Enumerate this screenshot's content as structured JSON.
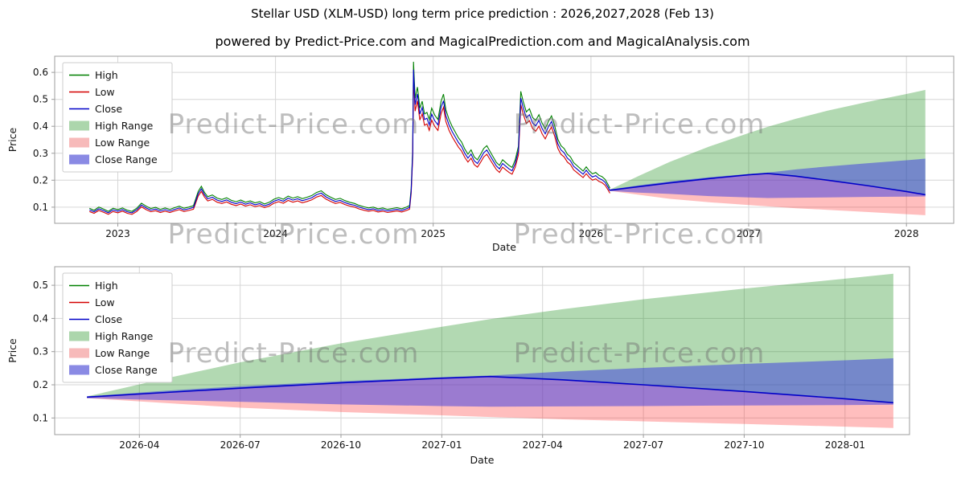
{
  "page": {
    "title": "Stellar USD (XLM-USD) long term price prediction : 2026,2027,2028 (Feb 13)",
    "subtitle": "powered by Predict-Price.com and MagicalPrediction.com and MagicalAnalysis.com",
    "watermark": "Predict-Price.com"
  },
  "colors": {
    "high": "#008000",
    "low": "#d40000",
    "close": "#0000c8",
    "high_fill": "rgba(0,128,0,0.30)",
    "low_fill": "rgba(255,40,40,0.30)",
    "close_fill": "rgba(55,55,225,0.50)",
    "high_range_swatch": "#acd6ac",
    "low_range_swatch": "#f7baba",
    "close_range_swatch": "#8a8ae4",
    "grid": "#d6d6d6",
    "border": "#9c9c9c",
    "text": "#111111",
    "watermark_color": "rgba(110,110,110,0.45)"
  },
  "legend": {
    "items": [
      {
        "label": "High",
        "type": "line",
        "color_key": "high"
      },
      {
        "label": "Low",
        "type": "line",
        "color_key": "low"
      },
      {
        "label": "Close",
        "type": "line",
        "color_key": "close"
      },
      {
        "label": "High Range",
        "type": "patch",
        "color_key": "high_range_swatch"
      },
      {
        "label": "Low Range",
        "type": "patch",
        "color_key": "low_range_swatch"
      },
      {
        "label": "Close Range",
        "type": "patch",
        "color_key": "close_range_swatch"
      }
    ]
  },
  "chart_data": [
    {
      "id": "main",
      "type": "line",
      "title": "Stellar USD (XLM-USD) long term price prediction : 2026,2027,2028 (Feb 13)",
      "xlabel": "Date",
      "ylabel": "Price",
      "xlim": [
        2022.6,
        2028.3
      ],
      "ylim": [
        0.04,
        0.66
      ],
      "grid": true,
      "legend_position": "upper-left",
      "xticks": {
        "values": [
          2023,
          2024,
          2025,
          2026,
          2027,
          2028
        ],
        "labels": [
          "2023",
          "2024",
          "2025",
          "2026",
          "2027",
          "2028"
        ]
      },
      "yticks": {
        "values": [
          0.1,
          0.2,
          0.3,
          0.4,
          0.5,
          0.6
        ],
        "labels": [
          "0.1",
          "0.2",
          "0.3",
          "0.4",
          "0.5",
          "0.6"
        ]
      },
      "history": {
        "high_low_band_pct": 4.5,
        "x": [
          2022.82,
          2022.85,
          2022.88,
          2022.91,
          2022.94,
          2022.97,
          2023.0,
          2023.03,
          2023.06,
          2023.09,
          2023.12,
          2023.15,
          2023.18,
          2023.21,
          2023.24,
          2023.27,
          2023.3,
          2023.33,
          2023.36,
          2023.39,
          2023.42,
          2023.45,
          2023.48,
          2023.51,
          2023.53,
          2023.55,
          2023.57,
          2023.6,
          2023.63,
          2023.66,
          2023.69,
          2023.72,
          2023.75,
          2023.78,
          2023.81,
          2023.84,
          2023.87,
          2023.9,
          2023.93,
          2023.96,
          2023.99,
          2024.02,
          2024.05,
          2024.08,
          2024.11,
          2024.14,
          2024.17,
          2024.2,
          2024.23,
          2024.26,
          2024.29,
          2024.32,
          2024.35,
          2024.38,
          2024.41,
          2024.44,
          2024.47,
          2024.5,
          2024.53,
          2024.56,
          2024.59,
          2024.62,
          2024.65,
          2024.68,
          2024.71,
          2024.74,
          2024.77,
          2024.8,
          2024.83,
          2024.85,
          2024.86,
          2024.87,
          2024.875,
          2024.885,
          2024.9,
          2024.915,
          2024.93,
          2024.945,
          2024.96,
          2024.975,
          2024.99,
          2025.01,
          2025.03,
          2025.05,
          2025.065,
          2025.08,
          2025.1,
          2025.12,
          2025.14,
          2025.16,
          2025.18,
          2025.2,
          2025.22,
          2025.24,
          2025.26,
          2025.28,
          2025.3,
          2025.32,
          2025.34,
          2025.36,
          2025.38,
          2025.4,
          2025.42,
          2025.44,
          2025.46,
          2025.48,
          2025.5,
          2025.52,
          2025.54,
          2025.555,
          2025.57,
          2025.59,
          2025.61,
          2025.63,
          2025.65,
          2025.67,
          2025.69,
          2025.71,
          2025.73,
          2025.75,
          2025.77,
          2025.79,
          2025.81,
          2025.83,
          2025.85,
          2025.87,
          2025.89,
          2025.91,
          2025.93,
          2025.95,
          2025.97,
          2025.99,
          2026.01,
          2026.03,
          2026.05,
          2026.07,
          2026.09,
          2026.11,
          2026.12
        ],
        "close": [
          0.09,
          0.083,
          0.094,
          0.087,
          0.079,
          0.09,
          0.085,
          0.091,
          0.083,
          0.079,
          0.09,
          0.108,
          0.097,
          0.089,
          0.093,
          0.086,
          0.091,
          0.086,
          0.092,
          0.097,
          0.09,
          0.094,
          0.099,
          0.15,
          0.168,
          0.146,
          0.131,
          0.137,
          0.126,
          0.121,
          0.127,
          0.118,
          0.113,
          0.119,
          0.111,
          0.116,
          0.109,
          0.113,
          0.105,
          0.111,
          0.122,
          0.128,
          0.122,
          0.133,
          0.126,
          0.131,
          0.124,
          0.129,
          0.135,
          0.146,
          0.152,
          0.138,
          0.129,
          0.121,
          0.125,
          0.117,
          0.111,
          0.107,
          0.1,
          0.095,
          0.091,
          0.094,
          0.088,
          0.091,
          0.086,
          0.089,
          0.092,
          0.088,
          0.094,
          0.099,
          0.16,
          0.3,
          0.61,
          0.48,
          0.52,
          0.445,
          0.47,
          0.425,
          0.43,
          0.405,
          0.445,
          0.42,
          0.405,
          0.47,
          0.495,
          0.44,
          0.405,
          0.38,
          0.36,
          0.34,
          0.325,
          0.3,
          0.282,
          0.297,
          0.272,
          0.262,
          0.281,
          0.302,
          0.312,
          0.292,
          0.272,
          0.253,
          0.242,
          0.262,
          0.252,
          0.242,
          0.235,
          0.262,
          0.31,
          0.505,
          0.47,
          0.432,
          0.443,
          0.412,
          0.402,
          0.422,
          0.392,
          0.372,
          0.398,
          0.418,
          0.382,
          0.335,
          0.312,
          0.302,
          0.282,
          0.272,
          0.252,
          0.242,
          0.232,
          0.222,
          0.237,
          0.222,
          0.212,
          0.217,
          0.207,
          0.202,
          0.192,
          0.172,
          0.161
        ]
      },
      "prediction": {
        "x": [
          2026.12,
          2026.3,
          2026.5,
          2026.75,
          2027.0,
          2027.12,
          2027.3,
          2027.5,
          2027.75,
          2028.0,
          2028.12
        ],
        "high_upper": [
          0.165,
          0.215,
          0.268,
          0.325,
          0.375,
          0.398,
          0.428,
          0.458,
          0.49,
          0.52,
          0.535
        ],
        "low_lower": [
          0.16,
          0.146,
          0.131,
          0.118,
          0.108,
          0.103,
          0.096,
          0.09,
          0.082,
          0.074,
          0.07
        ],
        "close_upper": [
          0.165,
          0.181,
          0.196,
          0.211,
          0.223,
          0.228,
          0.24,
          0.251,
          0.263,
          0.274,
          0.28
        ],
        "close_lower": [
          0.16,
          0.154,
          0.149,
          0.141,
          0.136,
          0.134,
          0.135,
          0.136,
          0.138,
          0.139,
          0.14
        ],
        "close": [
          0.163,
          0.176,
          0.19,
          0.206,
          0.22,
          0.225,
          0.215,
          0.2,
          0.18,
          0.158,
          0.146
        ]
      }
    },
    {
      "id": "forecast-zoom",
      "type": "line",
      "title": "",
      "xlabel": "Date",
      "ylabel": "Price",
      "xlim": [
        2026.04,
        2028.16
      ],
      "ylim": [
        0.05,
        0.556
      ],
      "grid": true,
      "legend_position": "upper-left",
      "xticks": {
        "values": [
          2026.25,
          2026.5,
          2026.75,
          2027.0,
          2027.25,
          2027.5,
          2027.75,
          2028.0
        ],
        "labels": [
          "2026-04",
          "2026-07",
          "2026-10",
          "2027-01",
          "2027-04",
          "2027-07",
          "2027-10",
          "2028-01"
        ]
      },
      "yticks": {
        "values": [
          0.1,
          0.2,
          0.3,
          0.4,
          0.5
        ],
        "labels": [
          "0.1",
          "0.2",
          "0.3",
          "0.4",
          "0.5"
        ]
      },
      "prediction_source": "main"
    }
  ]
}
